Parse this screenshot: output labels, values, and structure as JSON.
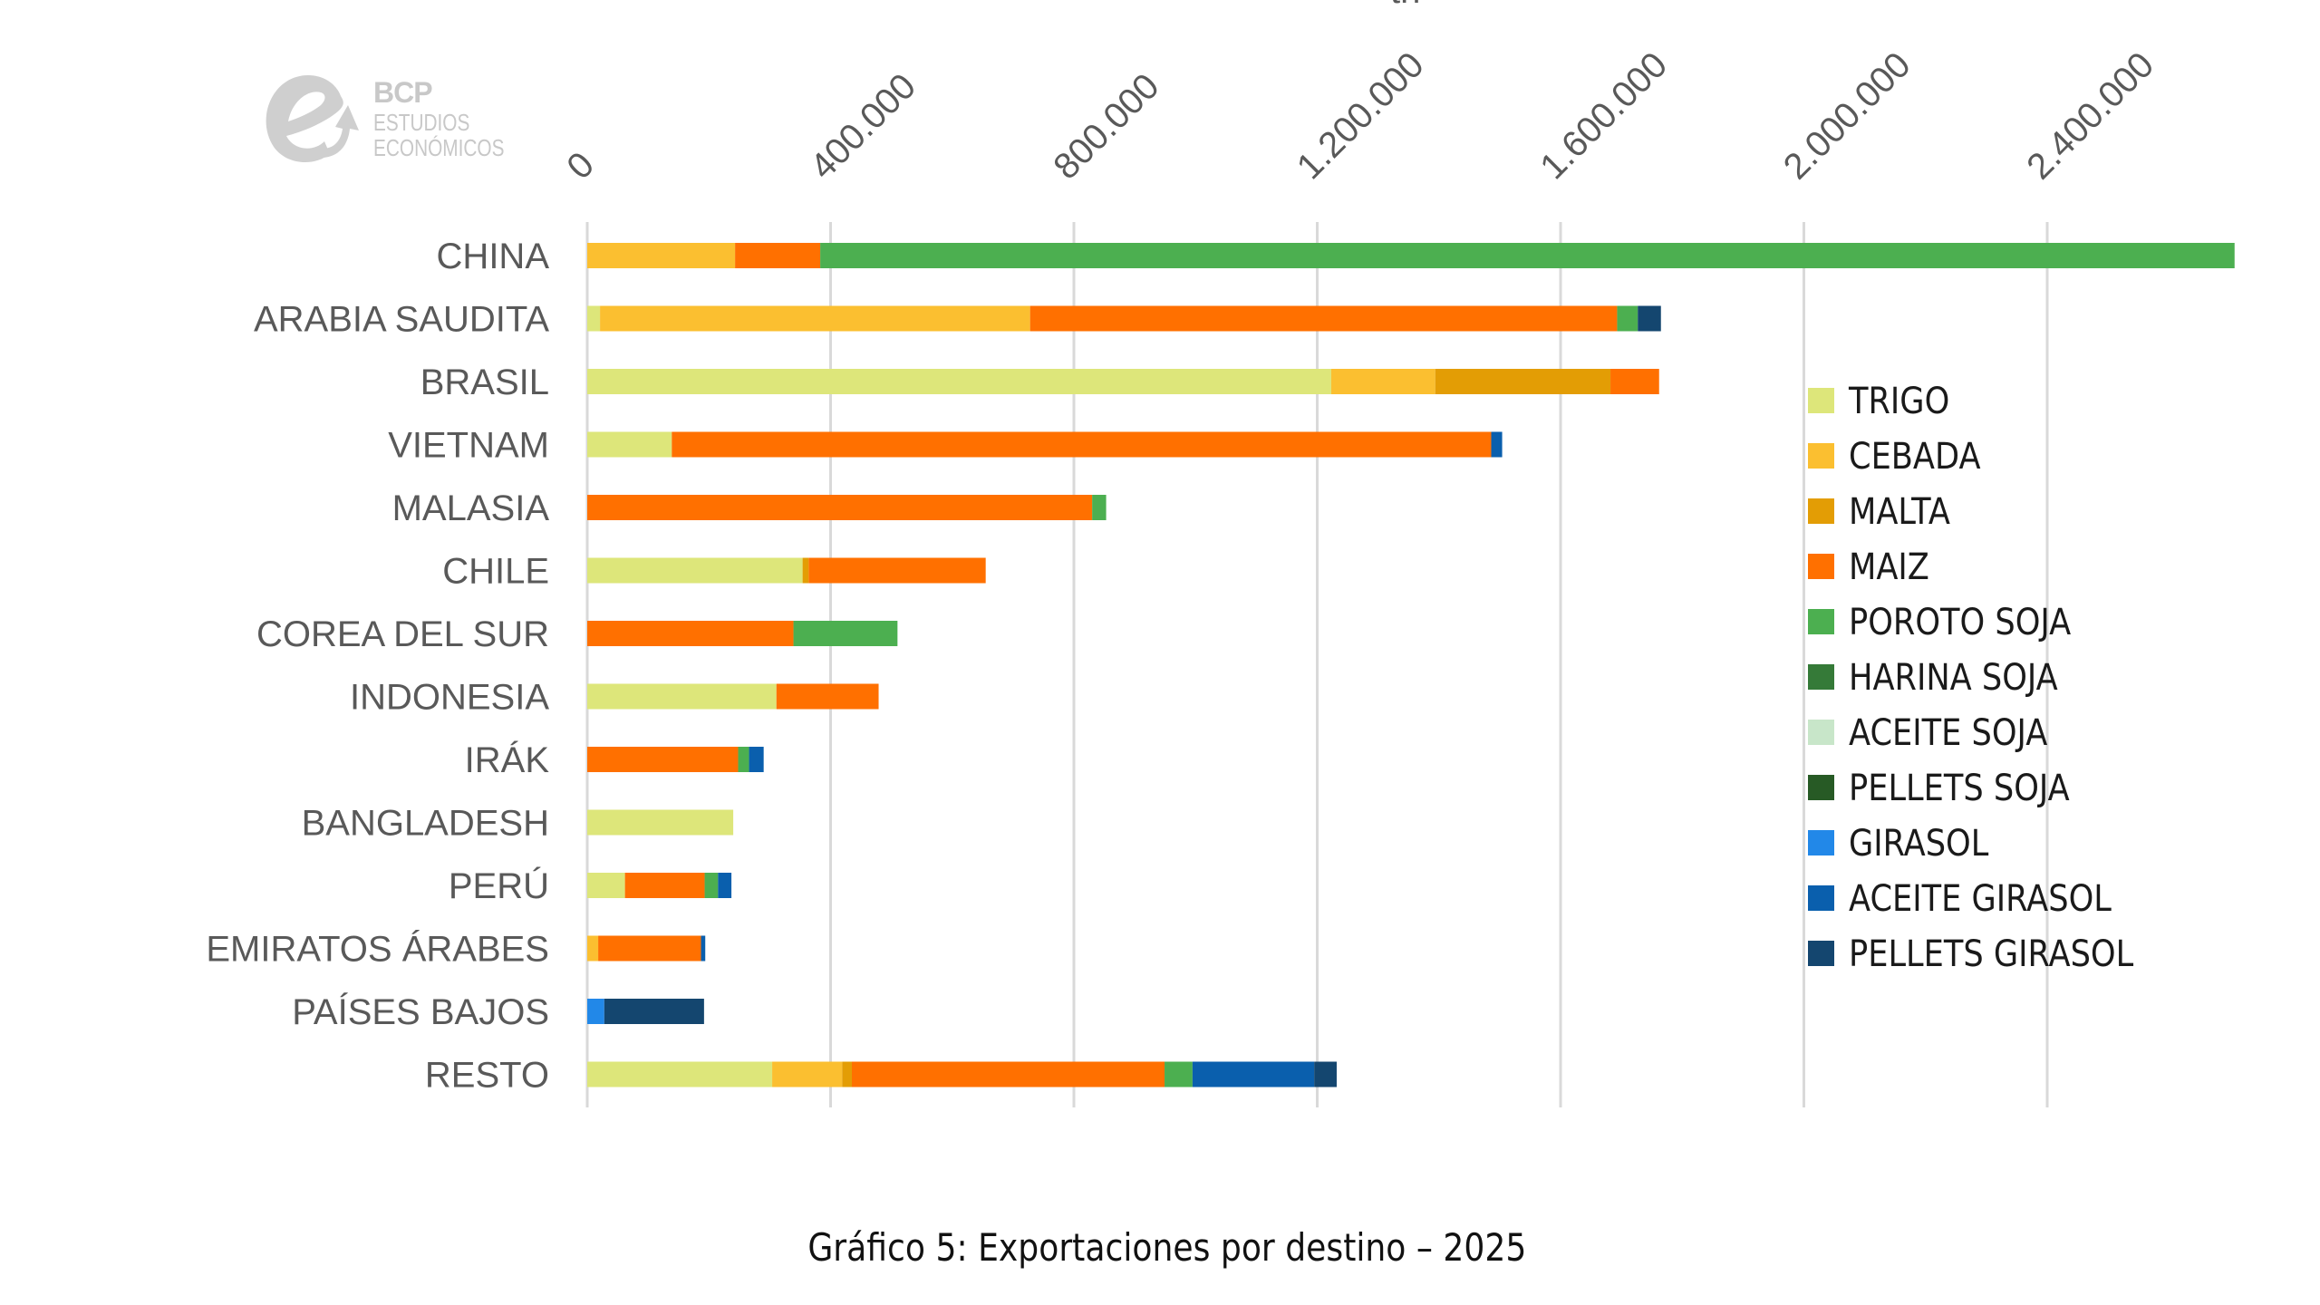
{
  "logo": {
    "brand": "BCP",
    "line1": "ESTUDIOS",
    "line2": "ECONÓMICOS"
  },
  "axis_unit_fragment": "tn",
  "caption": "Gráfico 5: Exportaciones por destino – 2025",
  "chart_data": {
    "type": "bar",
    "orientation": "horizontal",
    "stacked": true,
    "title": "",
    "xlabel": "tn",
    "ylabel": "",
    "xlim": [
      0,
      2710000
    ],
    "x_ticks": [
      0,
      400000,
      800000,
      1200000,
      1600000,
      2000000,
      2400000
    ],
    "x_tick_labels": [
      "0",
      "400.000",
      "800.000",
      "1.200.000",
      "1.600.000",
      "2.000.000",
      "2.400.000"
    ],
    "x_axis_position": "top",
    "grid": true,
    "legend_position": "right",
    "categories": [
      "CHINA",
      "ARABIA SAUDITA",
      "BRASIL",
      "VIETNAM",
      "MALASIA",
      "CHILE",
      "COREA DEL SUR",
      "INDONESIA",
      "IRÁK",
      "BANGLADESH",
      "PERÚ",
      "EMIRATOS ÁRABES",
      "PAÍSES BAJOS",
      "RESTO"
    ],
    "series": [
      {
        "name": "TRIGO",
        "color": "#dde67a",
        "values": [
          0,
          21000,
          1223000,
          139000,
          0,
          354000,
          0,
          311000,
          0,
          240000,
          62000,
          0,
          0,
          304000
        ]
      },
      {
        "name": "CEBADA",
        "color": "#fbbf30",
        "values": [
          243000,
          707000,
          171000,
          0,
          0,
          0,
          0,
          0,
          0,
          0,
          0,
          18000,
          0,
          115000
        ]
      },
      {
        "name": "MALTA",
        "color": "#e39d05",
        "values": [
          0,
          0,
          288000,
          0,
          0,
          10000,
          0,
          0,
          0,
          0,
          0,
          0,
          0,
          16000
        ]
      },
      {
        "name": "MAIZ",
        "color": "#ff7000",
        "values": [
          140000,
          965000,
          80000,
          1347000,
          830000,
          291000,
          339000,
          168000,
          248000,
          0,
          131000,
          169000,
          0,
          514000
        ]
      },
      {
        "name": "POROTO SOJA",
        "color": "#4caf50",
        "values": [
          2325000,
          34000,
          0,
          0,
          23000,
          0,
          171000,
          0,
          18000,
          0,
          22000,
          0,
          0,
          46000
        ]
      },
      {
        "name": "HARINA SOJA",
        "color": "#357a38",
        "values": [
          0,
          0,
          0,
          0,
          0,
          0,
          0,
          0,
          0,
          0,
          0,
          0,
          0,
          0
        ]
      },
      {
        "name": "ACEITE SOJA",
        "color": "#c8e6c9",
        "values": [
          0,
          0,
          0,
          0,
          0,
          0,
          0,
          0,
          0,
          0,
          0,
          0,
          0,
          0
        ]
      },
      {
        "name": "PELLETS SOJA",
        "color": "#275a25",
        "values": [
          0,
          0,
          0,
          0,
          0,
          0,
          0,
          0,
          0,
          0,
          0,
          0,
          0,
          0
        ]
      },
      {
        "name": "GIRASOL",
        "color": "#2288e8",
        "values": [
          0,
          0,
          0,
          0,
          0,
          0,
          0,
          0,
          0,
          0,
          0,
          0,
          28000,
          0
        ]
      },
      {
        "name": "ACEITE GIRASOL",
        "color": "#0a5fad",
        "values": [
          0,
          0,
          0,
          18000,
          0,
          0,
          0,
          0,
          24000,
          0,
          22000,
          7000,
          0,
          200000
        ]
      },
      {
        "name": "PELLETS GIRASOL",
        "color": "#14466f",
        "values": [
          0,
          38000,
          0,
          0,
          0,
          0,
          0,
          0,
          0,
          0,
          0,
          0,
          164000,
          37000
        ]
      }
    ]
  }
}
